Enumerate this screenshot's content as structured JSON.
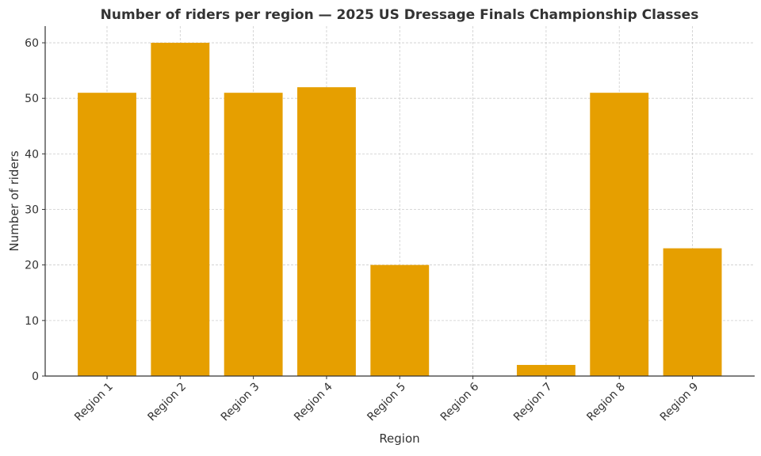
{
  "chart_data": {
    "type": "bar",
    "title": "Number of riders per region — 2025 US Dressage Finals Championship Classes",
    "xlabel": "Region",
    "ylabel": "Number of riders",
    "categories": [
      "Region 1",
      "Region 2",
      "Region 3",
      "Region 4",
      "Region 5",
      "Region 6",
      "Region 7",
      "Region 8",
      "Region 9"
    ],
    "values": [
      51,
      60,
      51,
      52,
      20,
      0,
      2,
      51,
      23
    ],
    "ylim": [
      0,
      63
    ],
    "yticks": [
      0,
      10,
      20,
      30,
      40,
      50,
      60
    ],
    "grid": true,
    "bar_color": "#E69F00"
  }
}
